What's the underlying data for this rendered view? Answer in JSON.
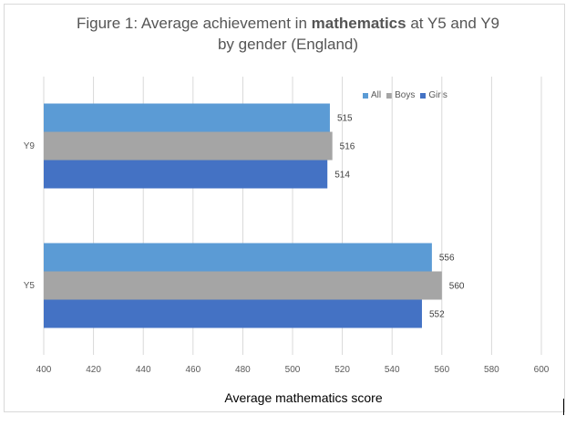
{
  "chart_data": {
    "type": "bar",
    "orientation": "horizontal",
    "title_prefix": "Figure 1: Average achievement in ",
    "title_bold": "mathematics",
    "title_suffix_line1": " at Y5 and Y9",
    "title_line2": "by gender (England)",
    "xlabel": "Average mathematics score",
    "ylabel": "",
    "xlim": [
      400,
      600
    ],
    "xticks": [
      400,
      420,
      440,
      460,
      480,
      500,
      520,
      540,
      560,
      580,
      600
    ],
    "categories": [
      "Y9",
      "Y5"
    ],
    "series": [
      {
        "name": "All",
        "color": "#5B9BD5",
        "values": [
          515,
          556
        ]
      },
      {
        "name": "Boys",
        "color": "#A5A5A5",
        "values": [
          516,
          560
        ]
      },
      {
        "name": "Girls",
        "color": "#4472C4",
        "values": [
          514,
          552
        ]
      }
    ],
    "grid": "vertical",
    "legend_position": "top-right",
    "data_labels": true
  }
}
